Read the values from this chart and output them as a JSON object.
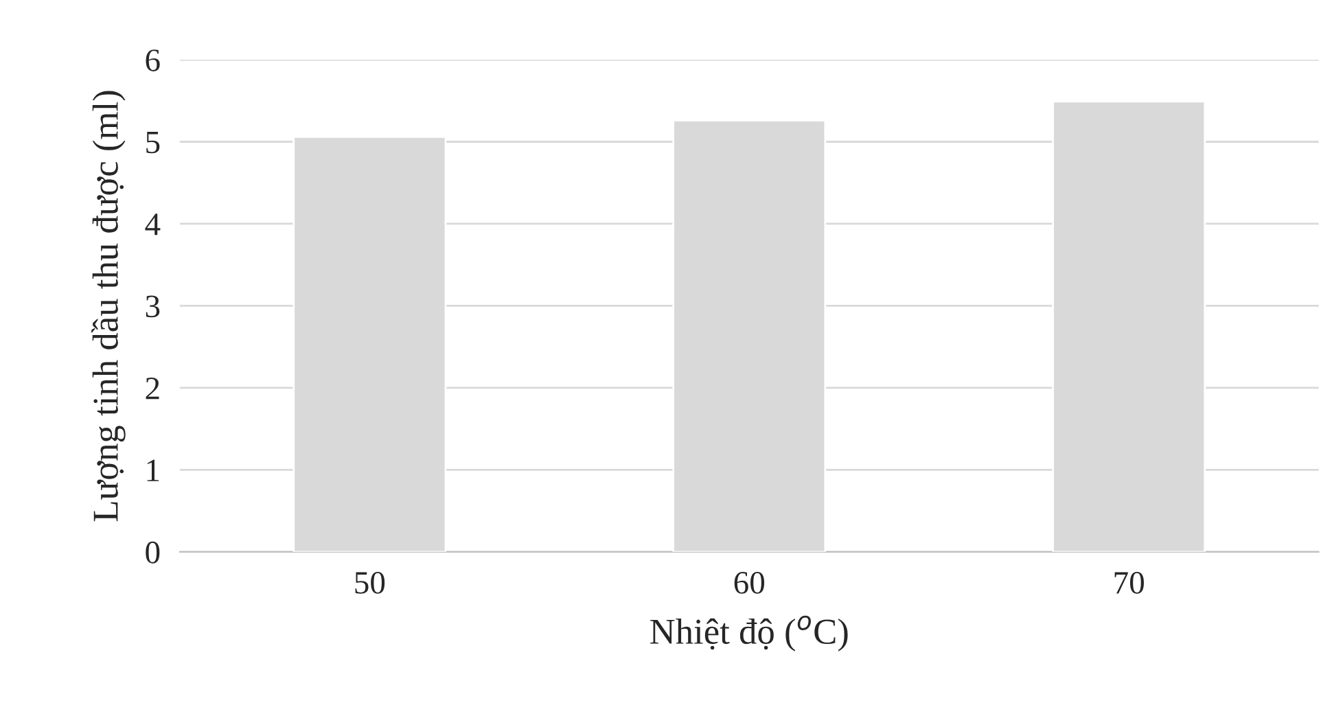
{
  "chart_data": {
    "type": "bar",
    "xlabel": "Nhiệt độ ($^{o}$C)",
    "ylabel": "Lượng tinh dầu thu được (ml)",
    "categories": [
      "50",
      "60",
      "70"
    ],
    "values": [
      5.06,
      5.26,
      5.49
    ],
    "color": "#d9d9d9",
    "ylim": [
      0,
      6
    ],
    "yticks": [
      0,
      1,
      2,
      3,
      4,
      5,
      6
    ],
    "grid": "y"
  }
}
